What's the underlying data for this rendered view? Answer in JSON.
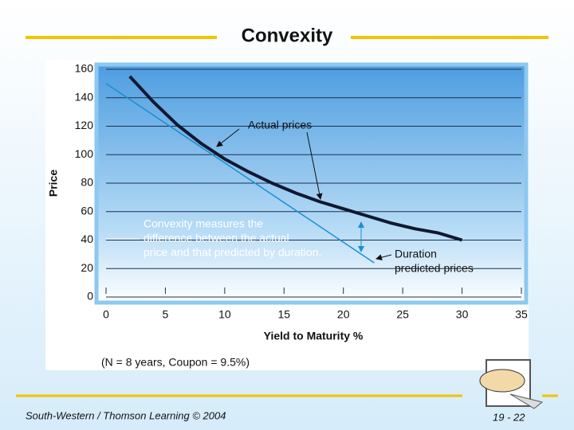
{
  "header": {
    "title": "Convexity"
  },
  "chart_data": {
    "type": "line",
    "xlabel": "Yield to Maturity %",
    "ylabel": "Price",
    "xlim": [
      0,
      35
    ],
    "xticks": [
      0,
      5,
      10,
      15,
      20,
      25,
      30,
      35
    ],
    "ylim": [
      0,
      160
    ],
    "yticks": [
      0,
      20,
      40,
      60,
      80,
      100,
      120,
      140,
      160
    ],
    "grid": true,
    "series": [
      {
        "name": "Actual prices",
        "color": "#101830",
        "x": [
          2,
          4,
          6,
          8,
          10,
          12,
          14,
          16,
          18,
          20,
          22,
          24,
          26,
          28,
          30
        ],
        "values": [
          155,
          137,
          121,
          108,
          97,
          88,
          80,
          73,
          67,
          62,
          57,
          52,
          48,
          45,
          40
        ]
      },
      {
        "name": "Duration predicted prices",
        "color": "#1a8fd0",
        "x": [
          0,
          22.6
        ],
        "values": [
          150,
          24
        ]
      }
    ],
    "annotations": {
      "convexity": [
        "Convexity measures the",
        "difference between the actual",
        "price and that predicted by duration."
      ],
      "duration": [
        "Duration",
        "predicted prices"
      ]
    },
    "note": "(N = 8 years, Coupon = 9.5%)"
  },
  "footer": {
    "source": "South-Western / Thomson Learning © 2004",
    "page": "19 - 22"
  }
}
